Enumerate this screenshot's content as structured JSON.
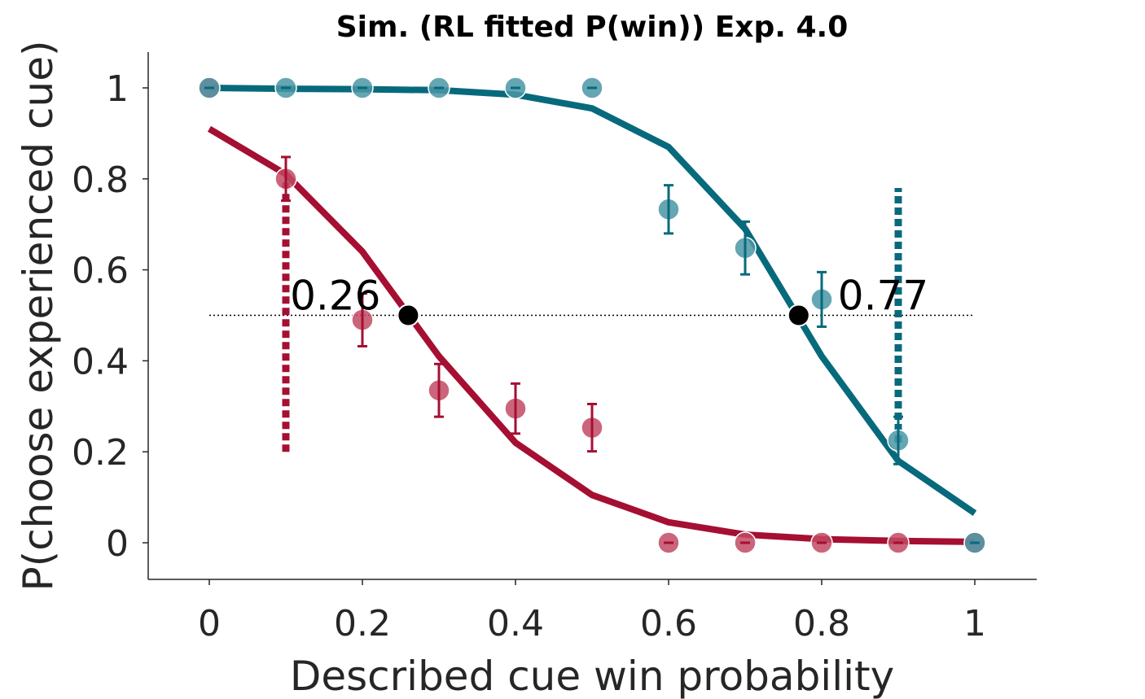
{
  "chart_data": {
    "type": "line",
    "title": "Sim. (RL fitted P(win)) Exp. 4.0",
    "xlabel": "Described cue win probability",
    "ylabel": "P(choose experienced cue)",
    "xlim": [
      -0.08,
      1.08
    ],
    "ylim": [
      -0.08,
      1.08
    ],
    "x_ticks": [
      0,
      0.2,
      0.4,
      0.6,
      0.8,
      1
    ],
    "x_tick_labels": [
      "0",
      "0.2",
      "0.4",
      "0.6",
      "0.8",
      "1"
    ],
    "y_ticks": [
      0,
      0.2,
      0.4,
      0.6,
      0.8,
      1
    ],
    "y_tick_labels": [
      "0",
      "0.2",
      "0.4",
      "0.6",
      "0.8",
      "1"
    ],
    "grid": false,
    "reference_line": {
      "y": 0.5,
      "x_range": [
        0,
        1
      ],
      "style": "dotted",
      "color": "#000000"
    },
    "series": [
      {
        "color": "#a50f32",
        "marker_color": "#c24a64",
        "fit_curve": {
          "x": [
            0,
            0.1,
            0.2,
            0.3,
            0.4,
            0.5,
            0.6,
            0.7,
            0.8,
            0.9,
            1
          ],
          "y": [
            0.91,
            0.81,
            0.64,
            0.41,
            0.22,
            0.105,
            0.045,
            0.018,
            0.008,
            0.004,
            0.002
          ]
        },
        "points": {
          "x": [
            0,
            0.1,
            0.2,
            0.3,
            0.4,
            0.5,
            0.6,
            0.7,
            0.8,
            0.9,
            1
          ],
          "y": [
            1,
            0.8,
            0.49,
            0.335,
            0.295,
            0.253,
            0,
            0,
            0,
            0,
            0
          ],
          "err": [
            0,
            0.048,
            0.058,
            0.058,
            0.055,
            0.052,
            0,
            0,
            0,
            0,
            0
          ]
        },
        "indifference_point": {
          "x": 0.26,
          "label": "0.26"
        },
        "vertical_marker": {
          "x": 0.1,
          "y_range": [
            0.2,
            0.8
          ]
        }
      },
      {
        "color": "#076a7c",
        "marker_color": "#4a97a6",
        "fit_curve": {
          "x": [
            0,
            0.1,
            0.2,
            0.3,
            0.4,
            0.5,
            0.6,
            0.7,
            0.8,
            0.9,
            1
          ],
          "y": [
            1.0,
            0.998,
            0.997,
            0.995,
            0.985,
            0.955,
            0.87,
            0.69,
            0.41,
            0.18,
            0.065
          ]
        },
        "points": {
          "x": [
            0,
            0.1,
            0.2,
            0.3,
            0.4,
            0.5,
            0.6,
            0.7,
            0.8,
            0.9,
            1
          ],
          "y": [
            1,
            1,
            1,
            1,
            1,
            1,
            0.733,
            0.648,
            0.535,
            0.225,
            0
          ],
          "err": [
            0,
            0,
            0,
            0,
            0,
            0,
            0.053,
            0.058,
            0.06,
            0.052,
            0
          ]
        },
        "indifference_point": {
          "x": 0.77,
          "label": "0.77"
        },
        "vertical_marker": {
          "x": 0.9,
          "y_range": [
            0.22,
            0.78
          ]
        }
      }
    ]
  }
}
